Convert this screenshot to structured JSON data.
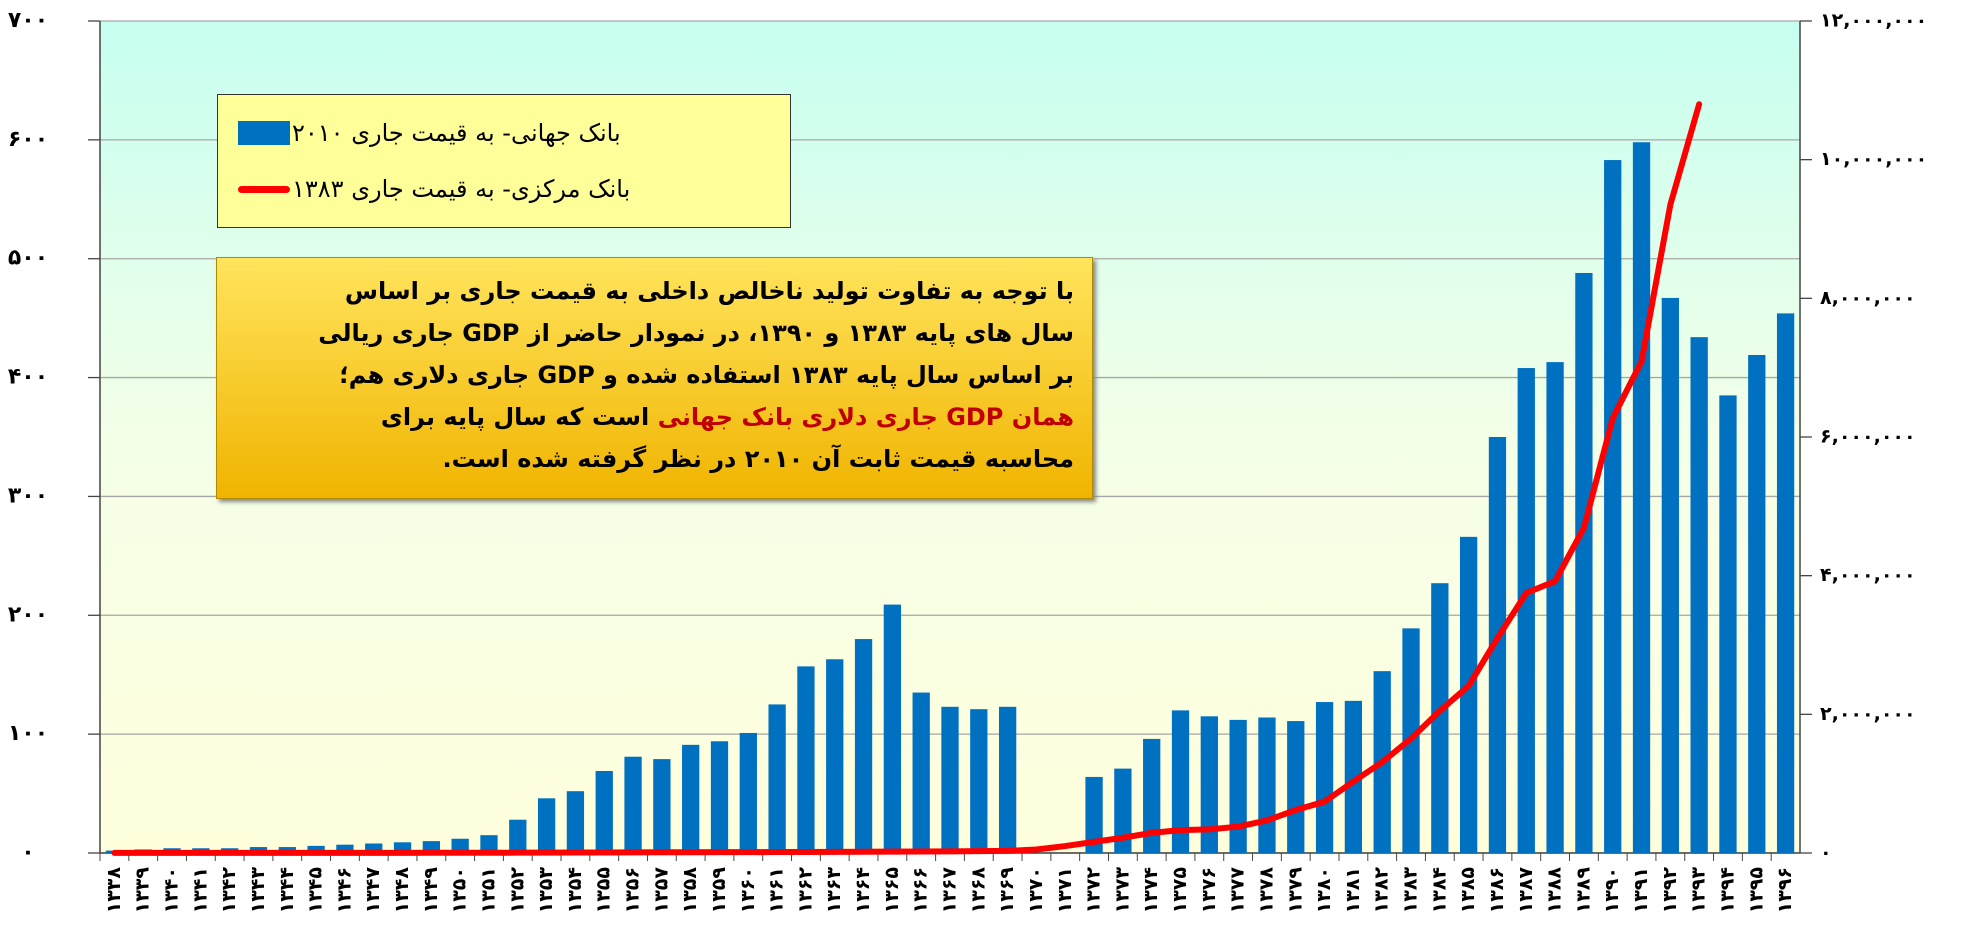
{
  "chart_data": {
    "type": "bar_line",
    "categories": [
      "۱۳۳۸",
      "۱۳۳۹",
      "۱۳۴۰",
      "۱۳۴۱",
      "۱۳۴۲",
      "۱۳۴۳",
      "۱۳۴۴",
      "۱۳۴۵",
      "۱۳۴۶",
      "۱۳۴۷",
      "۱۳۴۸",
      "۱۳۴۹",
      "۱۳۵۰",
      "۱۳۵۱",
      "۱۳۵۲",
      "۱۳۵۳",
      "۱۳۵۴",
      "۱۳۵۵",
      "۱۳۵۶",
      "۱۳۵۷",
      "۱۳۵۸",
      "۱۳۵۹",
      "۱۳۶۰",
      "۱۳۶۱",
      "۱۳۶۲",
      "۱۳۶۳",
      "۱۳۶۴",
      "۱۳۶۵",
      "۱۳۶۶",
      "۱۳۶۷",
      "۱۳۶۸",
      "۱۳۶۹",
      "۱۳۷۰",
      "۱۳۷۱",
      "۱۳۷۲",
      "۱۳۷۳",
      "۱۳۷۴",
      "۱۳۷۵",
      "۱۳۷۶",
      "۱۳۷۷",
      "۱۳۷۸",
      "۱۳۷۹",
      "۱۳۸۰",
      "۱۳۸۱",
      "۱۳۸۲",
      "۱۳۸۳",
      "۱۳۸۴",
      "۱۳۸۵",
      "۱۳۸۶",
      "۱۳۸۷",
      "۱۳۸۸",
      "۱۳۸۹",
      "۱۳۹۰",
      "۱۳۹۱",
      "۱۳۹۲",
      "۱۳۹۳",
      "۱۳۹۴",
      "۱۳۹۵",
      "۱۳۹۶"
    ],
    "series": [
      {
        "name": "بانک جهانی- به قیمت جاری ۲۰۱۰",
        "color": "#0070c0",
        "kind": "bar",
        "values": [
          2,
          3,
          4,
          4,
          4,
          5,
          5,
          6,
          7,
          8,
          9,
          10,
          12,
          15,
          28,
          46,
          52,
          69,
          81,
          79,
          91,
          94,
          101,
          125,
          157,
          163,
          180,
          209,
          135,
          123,
          121,
          123,
          null,
          null,
          64,
          71,
          96,
          120,
          115,
          112,
          114,
          111,
          127,
          128,
          153,
          189,
          227,
          266,
          350,
          408,
          413,
          488,
          583,
          598,
          467,
          434,
          385,
          419,
          454
        ]
      },
      {
        "name": "بانک مرکزی- به قیمت جاری ۱۳۸۳",
        "color": "#ff0000",
        "kind": "line",
        "axis": "y2",
        "values": [
          1000,
          1100,
          1200,
          1300,
          1400,
          1500,
          1700,
          1900,
          2100,
          2300,
          2600,
          2900,
          3300,
          3800,
          4800,
          6000,
          7000,
          8000,
          9000,
          10000,
          11000,
          12000,
          13000,
          14000,
          15000,
          16500,
          18000,
          20000,
          22000,
          24000,
          27000,
          30000,
          50000,
          100000,
          160000,
          220000,
          290000,
          330000,
          340000,
          380000,
          470000,
          620000,
          740000,
          1030000,
          1310000,
          1650000,
          2050000,
          2410000,
          3100000,
          3750000,
          3920000,
          4690000,
          6270000,
          7090000,
          9350000,
          10800000,
          null,
          null,
          null
        ]
      }
    ],
    "ylim": [
      0,
      700
    ],
    "yticks": [
      {
        "value": 0,
        "label": "۰"
      },
      {
        "value": 100,
        "label": "۱۰۰"
      },
      {
        "value": 200,
        "label": "۲۰۰"
      },
      {
        "value": 300,
        "label": "۳۰۰"
      },
      {
        "value": 400,
        "label": "۴۰۰"
      },
      {
        "value": 500,
        "label": "۵۰۰"
      },
      {
        "value": 600,
        "label": "۶۰۰"
      },
      {
        "value": 700,
        "label": "۷۰۰"
      }
    ],
    "y2lim": [
      0,
      12000000
    ],
    "y2ticks": [
      {
        "value": 0,
        "label": "۰"
      },
      {
        "value": 2000000,
        "label": "۲,۰۰۰,۰۰۰"
      },
      {
        "value": 4000000,
        "label": "۴,۰۰۰,۰۰۰"
      },
      {
        "value": 6000000,
        "label": "۶,۰۰۰,۰۰۰"
      },
      {
        "value": 8000000,
        "label": "۸,۰۰۰,۰۰۰"
      },
      {
        "value": 10000000,
        "label": "۱۰,۰۰۰,۰۰۰"
      },
      {
        "value": 12000000,
        "label": "۱۲,۰۰۰,۰۰۰"
      }
    ],
    "grid": true,
    "legend": "top-left",
    "annotation": {
      "lines": [
        "با توجه به تفاوت تولید ناخالص داخلی به قیمت جاری بر اساس",
        "سال های پایه ۱۳۸۳ و ۱۳۹۰، در نمودار حاضر از GDP جاری ریالی",
        "بر اساس سال پایه ۱۳۸۳ استفاده شده و GDP جاری دلاری هم؛"
      ],
      "highlight": "همان GDP جاری دلاری بانک جهانی",
      "highlight_color": "#c00000",
      "rest": "است که سال پایه برای",
      "last": "محاسبه قیمت ثابت آن ۲۰۱۰ در نظر گرفته شده است."
    }
  }
}
